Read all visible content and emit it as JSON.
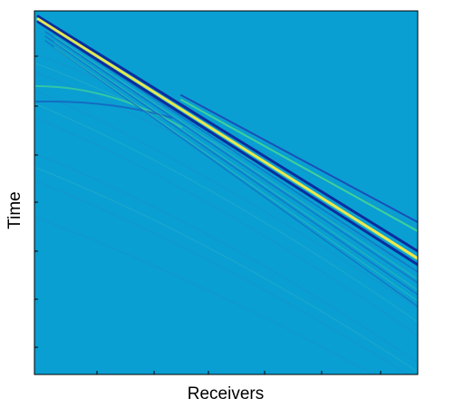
{
  "chart_data": {
    "type": "image",
    "xlabel": "Receivers",
    "ylabel": "Time"
  }
}
